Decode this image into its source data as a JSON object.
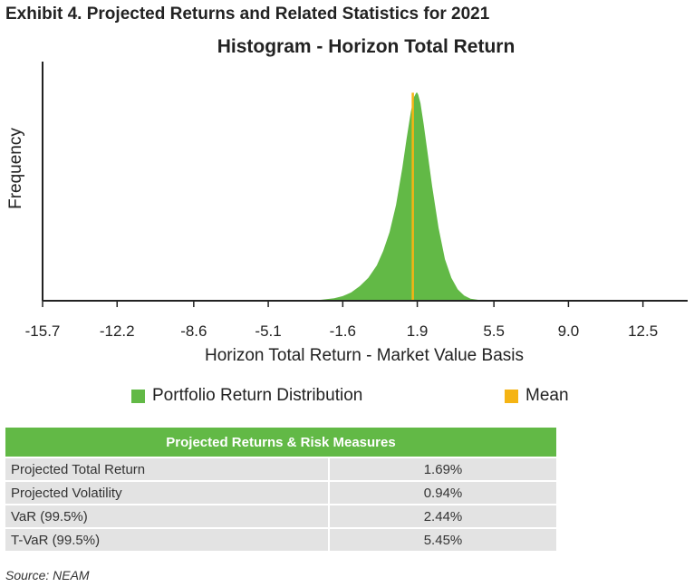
{
  "exhibit_title": "Exhibit 4. Projected Returns and Related Statistics for 2021",
  "colors": {
    "distribution": "#62b946",
    "mean": "#f5b414",
    "axis": "#222222"
  },
  "chart_data": {
    "type": "area",
    "title": "Histogram - Horizon Total Return",
    "xlabel": "Horizon Total Return - Market Value Basis",
    "ylabel": "Frequency",
    "x_ticks": [
      -15.7,
      -12.2,
      -8.6,
      -5.1,
      -1.6,
      1.9,
      5.5,
      9.0,
      12.5
    ],
    "x_tick_labels": [
      "-15.7",
      "-12.2",
      "-8.6",
      "-5.1",
      "-1.6",
      "1.9",
      "5.5",
      "9.0",
      "12.5"
    ],
    "xlim": [
      -15.7,
      14.6
    ],
    "ylim": [
      0,
      1.15
    ],
    "series": [
      {
        "name": "Portfolio Return Distribution",
        "x": [
          -3.2,
          -2.6,
          -2.0,
          -1.6,
          -1.2,
          -0.8,
          -0.4,
          0.0,
          0.3,
          0.6,
          0.9,
          1.2,
          1.4,
          1.6,
          1.75,
          1.85,
          1.9,
          1.95,
          2.05,
          2.2,
          2.4,
          2.6,
          2.9,
          3.2,
          3.5,
          3.8,
          4.1,
          4.4,
          4.8,
          5.2
        ],
        "y": [
          0.0,
          0.005,
          0.012,
          0.022,
          0.04,
          0.07,
          0.11,
          0.17,
          0.24,
          0.33,
          0.46,
          0.64,
          0.78,
          0.91,
          0.98,
          1.0,
          1.0,
          0.99,
          0.95,
          0.85,
          0.7,
          0.55,
          0.35,
          0.2,
          0.11,
          0.055,
          0.025,
          0.01,
          0.004,
          0.0
        ]
      },
      {
        "name": "Mean",
        "x": [
          1.69
        ],
        "y": [
          1.0
        ]
      }
    ],
    "legend": [
      "Portfolio Return Distribution",
      "Mean"
    ],
    "legend_position": "bottom",
    "grid": false
  },
  "table": {
    "header": "Projected Returns & Risk Measures",
    "rows": [
      {
        "label": "Projected Total Return",
        "value": "1.69%"
      },
      {
        "label": "Projected Volatility",
        "value": "0.94%"
      },
      {
        "label": "VaR (99.5%)",
        "value": "2.44%"
      },
      {
        "label": "T-VaR (99.5%)",
        "value": "5.45%"
      }
    ]
  },
  "source": "Source: NEAM"
}
